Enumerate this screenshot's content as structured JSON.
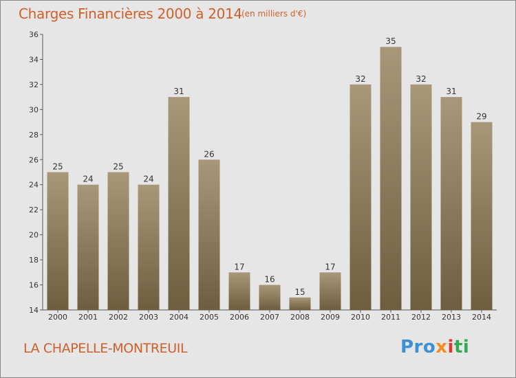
{
  "header": {
    "title": "Charges Financières 2000 à 2014",
    "subtitle": "(en milliers d'€)"
  },
  "footer": {
    "commune": "LA CHAPELLE-MONTREUIL",
    "logo_parts": [
      "Pro",
      "x",
      "i",
      "ti"
    ]
  },
  "colors": {
    "bar_top": "#a9977a",
    "bar_bottom": "#6f5d40",
    "title": "#d05f2a",
    "background": "#e6e6e6"
  },
  "chart_data": {
    "type": "bar",
    "title": "Charges Financières 2000 à 2014",
    "subtitle": "(en milliers d'€)",
    "categories": [
      "2000",
      "2001",
      "2002",
      "2003",
      "2004",
      "2005",
      "2006",
      "2007",
      "2008",
      "2009",
      "2010",
      "2011",
      "2012",
      "2013",
      "2014"
    ],
    "values": [
      25,
      24,
      25,
      24,
      31,
      26,
      17,
      16,
      15,
      17,
      32,
      35,
      32,
      31,
      29
    ],
    "ylim": [
      14,
      36
    ],
    "yticks": [
      14,
      16,
      18,
      20,
      22,
      24,
      26,
      28,
      30,
      32,
      34,
      36
    ],
    "grid": false,
    "legend": "none"
  }
}
